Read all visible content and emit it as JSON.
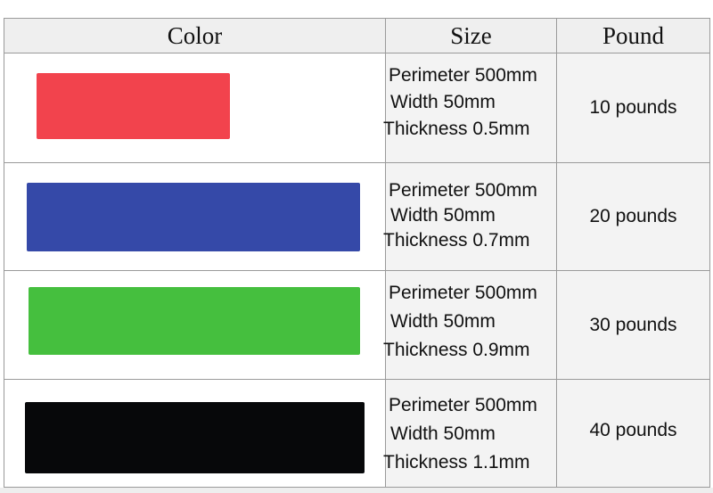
{
  "headers": {
    "color": "Color",
    "size": "Size",
    "pound": "Pound"
  },
  "rows": [
    {
      "band_color": "#f2434d",
      "perimeter": "Perimeter 500mm",
      "width": "Width 50mm",
      "thickness": "Thickness 0.5mm",
      "pounds": "10 pounds"
    },
    {
      "band_color": "#3549a8",
      "perimeter": "Perimeter 500mm",
      "width": "Width 50mm",
      "thickness": "Thickness 0.7mm",
      "pounds": "20 pounds"
    },
    {
      "band_color": "#45bf3e",
      "perimeter": "Perimeter 500mm",
      "width": "Width 50mm",
      "thickness": "Thickness 0.9mm",
      "pounds": "30 pounds"
    },
    {
      "band_color": "#07080a",
      "perimeter": "Perimeter 500mm",
      "width": "Width 50mm",
      "thickness": "Thickness 1.1mm",
      "pounds": "40 pounds"
    }
  ]
}
